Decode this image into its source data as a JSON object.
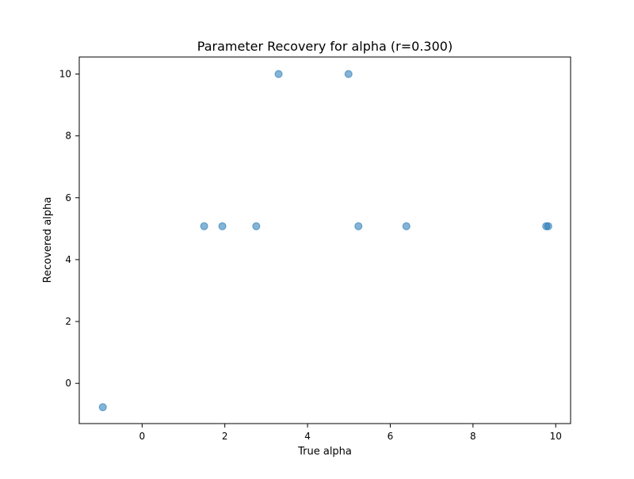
{
  "chart_data": {
    "type": "scatter",
    "title": "Parameter Recovery for alpha (r=0.300)",
    "xlabel": "True alpha",
    "ylabel": "Recovered alpha",
    "xlim": [
      -1.52,
      10.36
    ],
    "ylim": [
      -1.3,
      10.55
    ],
    "xticks": [
      0,
      2,
      4,
      6,
      8,
      10
    ],
    "yticks": [
      0,
      2,
      4,
      6,
      8,
      10
    ],
    "xtick_labels": [
      "0",
      "2",
      "4",
      "6",
      "8",
      10
    ],
    "ytick_labels": [
      "0",
      "2",
      "4",
      "6",
      "8",
      "10"
    ],
    "grid": false,
    "point_color": "#1f77b4",
    "point_alpha": 0.55,
    "points": [
      {
        "x": -0.95,
        "y": -0.77
      },
      {
        "x": 1.5,
        "y": 5.08
      },
      {
        "x": 1.94,
        "y": 5.08
      },
      {
        "x": 2.76,
        "y": 5.08
      },
      {
        "x": 3.3,
        "y": 10.0
      },
      {
        "x": 4.99,
        "y": 10.0
      },
      {
        "x": 5.23,
        "y": 5.08
      },
      {
        "x": 6.39,
        "y": 5.08
      },
      {
        "x": 9.77,
        "y": 5.08
      },
      {
        "x": 9.82,
        "y": 5.08
      }
    ]
  }
}
